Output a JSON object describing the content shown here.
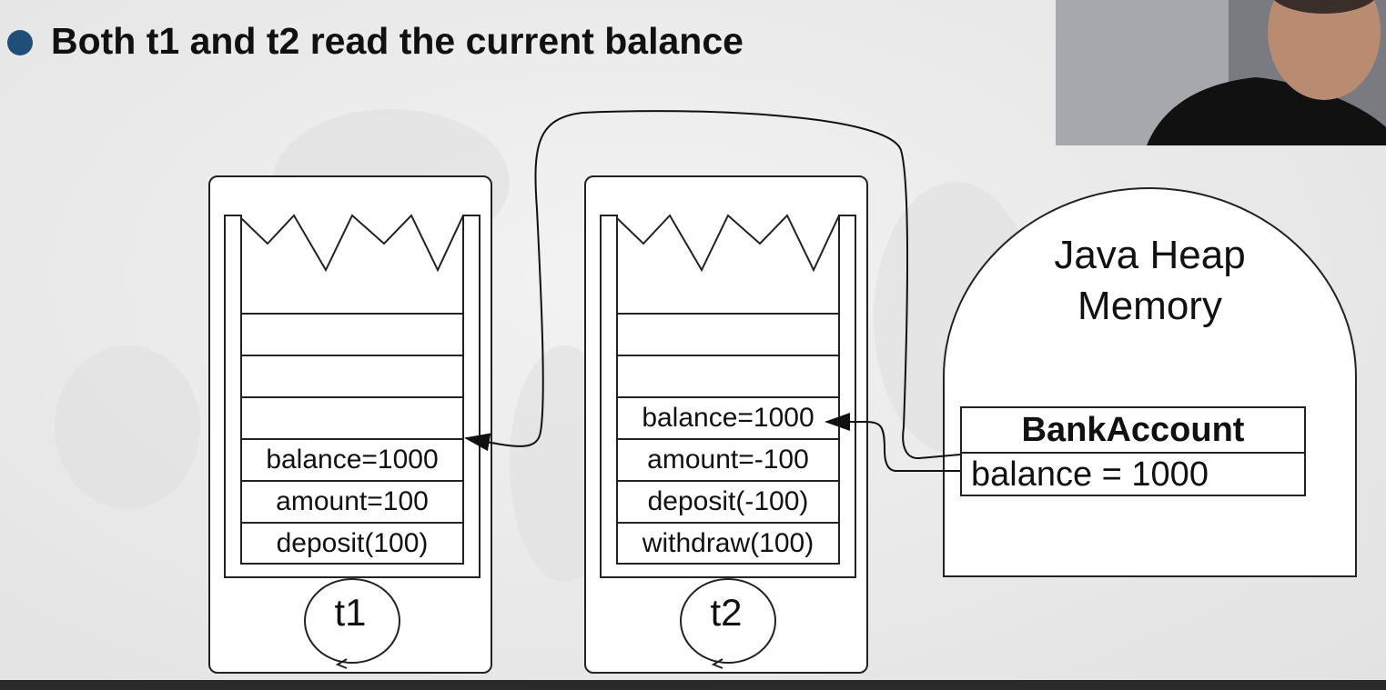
{
  "slide": {
    "title": "Both t1 and t2 read the current balance"
  },
  "threads": [
    {
      "name": "t1",
      "frames": [
        "balance=1000",
        "amount=100",
        "deposit(100)"
      ]
    },
    {
      "name": "t2",
      "frames": [
        "balance=1000",
        "amount=-100",
        "deposit(-100)",
        "withdraw(100)"
      ]
    }
  ],
  "heap": {
    "title_line1": "Java Heap",
    "title_line2": "Memory",
    "object": {
      "class_name": "BankAccount",
      "field": "balance = 1000"
    }
  },
  "colors": {
    "bullet": "#1f4e79",
    "stroke": "#222222"
  }
}
